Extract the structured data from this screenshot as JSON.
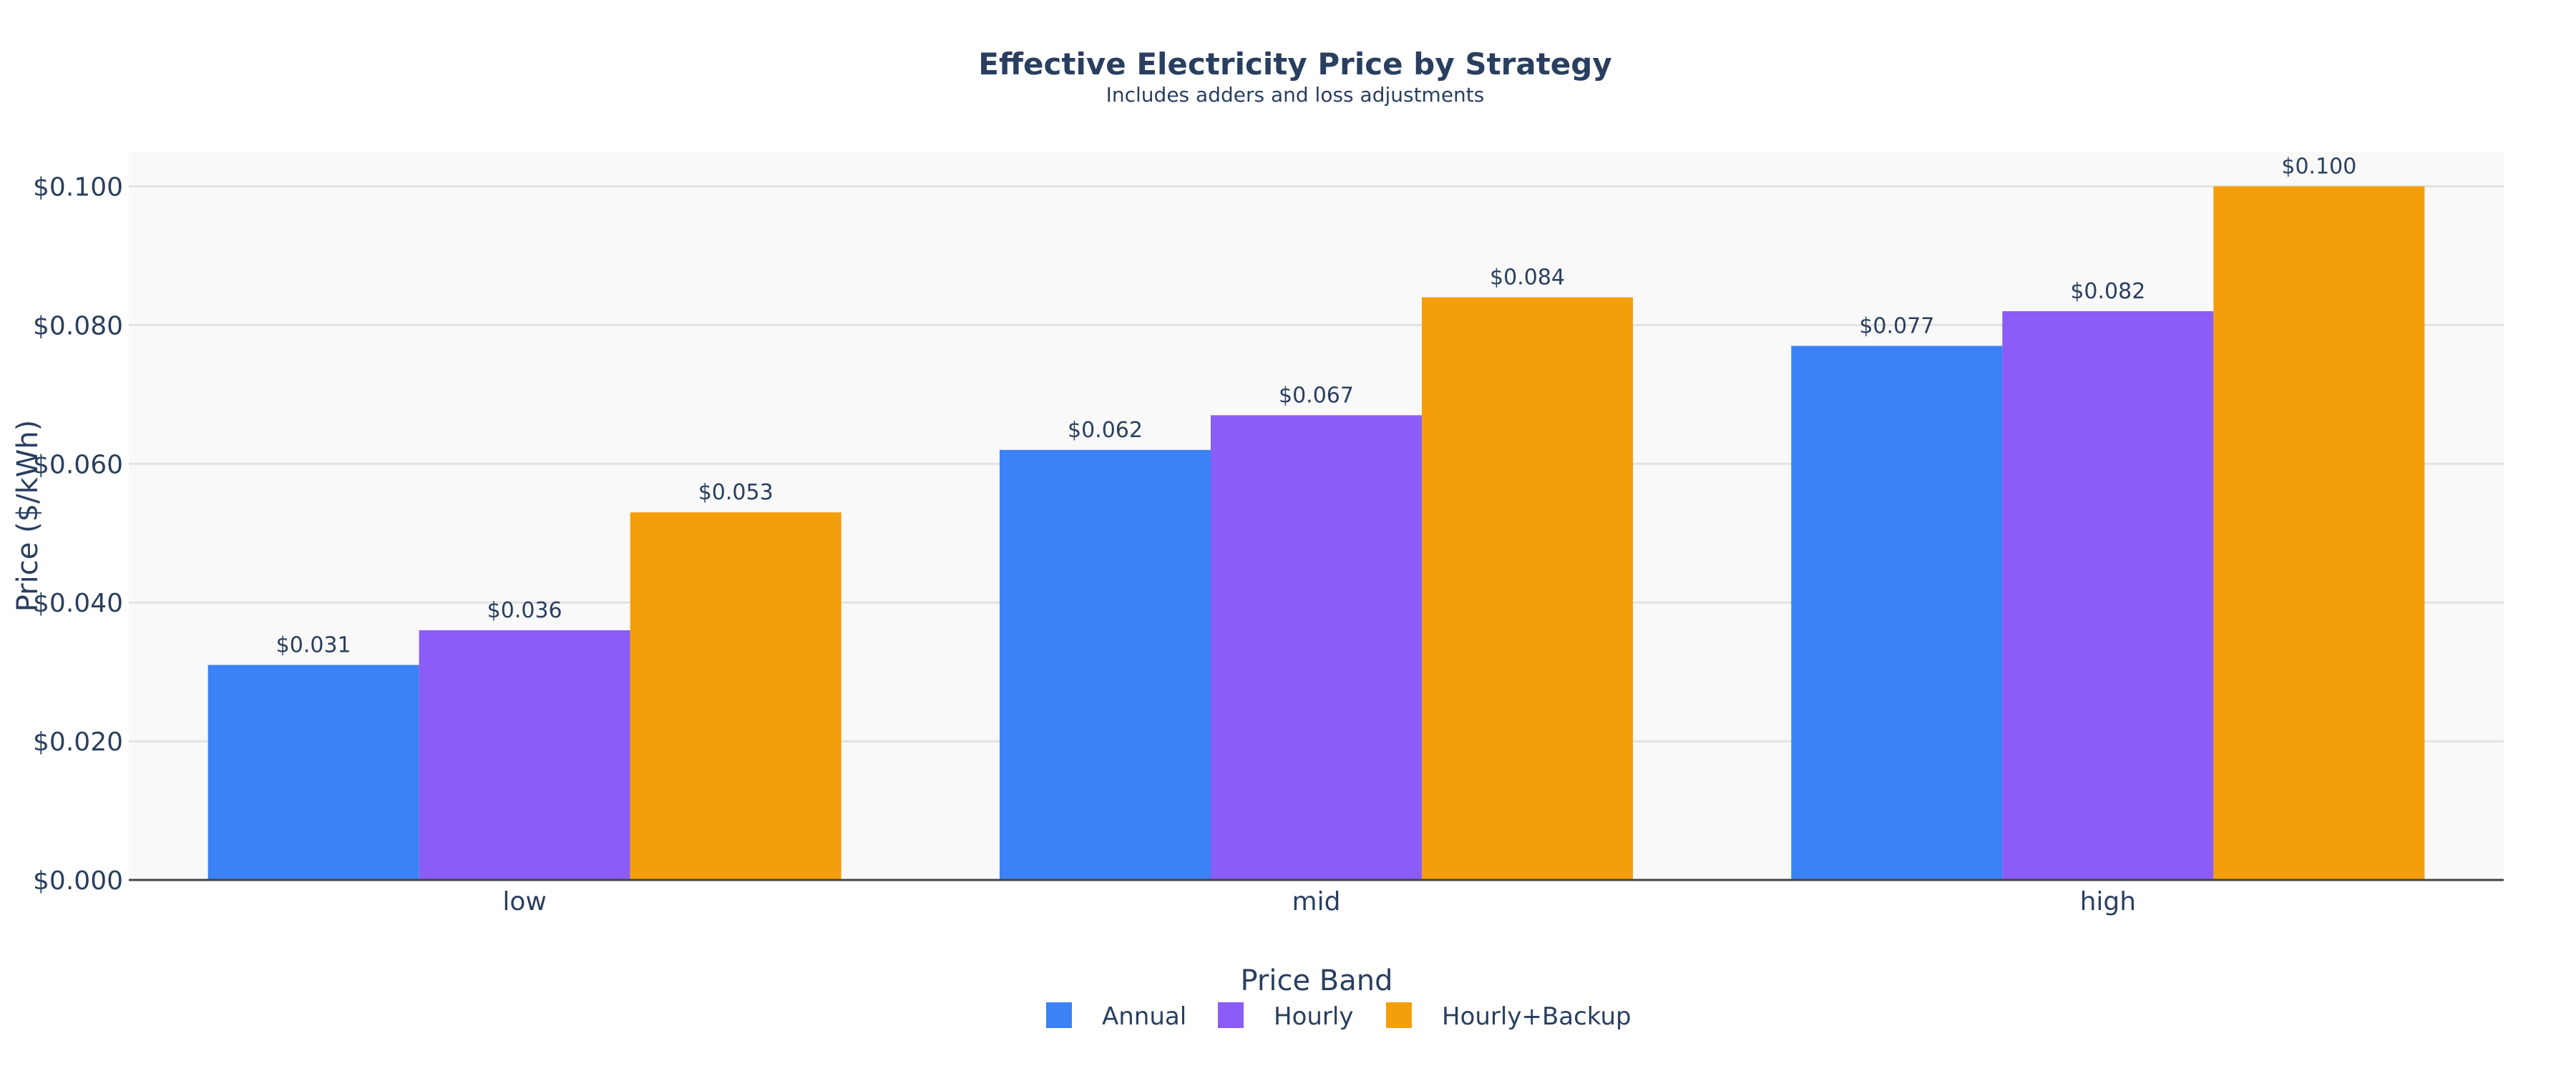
{
  "chart_data": {
    "type": "bar",
    "title": "Effective Electricity Price by Strategy",
    "subtitle": "Includes adders and loss adjustments",
    "xlabel": "",
    "ylabel": "Price ($/kWh)",
    "categories": [
      "low",
      "mid",
      "high"
    ],
    "series": [
      {
        "name": "Annual",
        "color": "#3b82f6",
        "values": [
          0.031,
          0.062,
          0.077
        ],
        "labels": [
          "$0.031",
          "$0.062",
          "$0.077"
        ]
      },
      {
        "name": "Hourly",
        "color": "#8b5cf6",
        "values": [
          0.036,
          0.067,
          0.082
        ],
        "labels": [
          "$0.036",
          "$0.067",
          "$0.082"
        ]
      },
      {
        "name": "Hourly+Backup",
        "color": "#f59e0b",
        "values": [
          0.053,
          0.084,
          0.1
        ],
        "labels": [
          "$0.053",
          "$0.084",
          "$0.100"
        ]
      }
    ],
    "ylim": [
      0,
      0.105
    ],
    "yticks": [
      0,
      0.02,
      0.04,
      0.06,
      0.08,
      0.1
    ],
    "ytick_labels": [
      "$0.000",
      "$0.020",
      "$0.040",
      "$0.060",
      "$0.080",
      "$0.100"
    ],
    "grid": true,
    "legend": {
      "title": "Price Band",
      "placement": "bottom"
    },
    "plot_background": "#f9f9f9"
  }
}
